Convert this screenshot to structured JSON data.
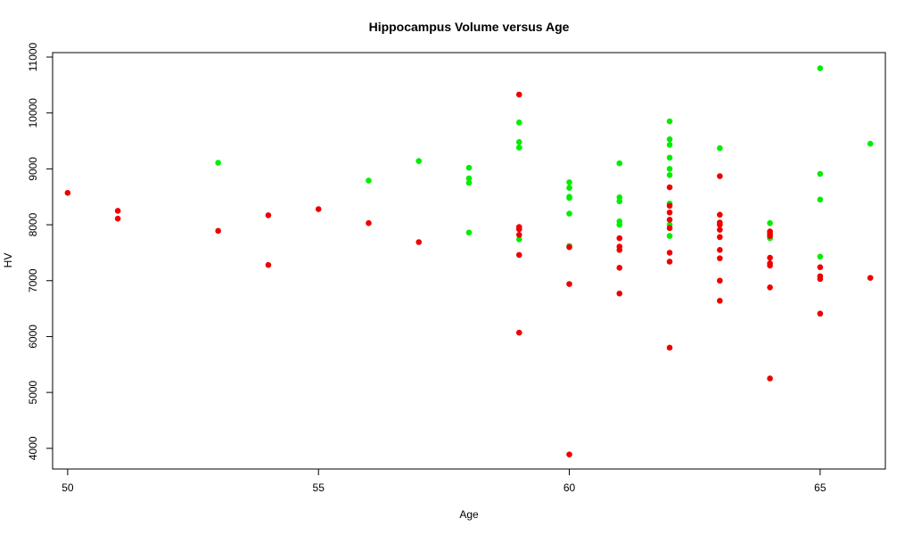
{
  "chart_data": {
    "type": "scatter",
    "title": "Hippocampus Volume versus Age",
    "xlabel": "Age",
    "ylabel": "HV",
    "xlim": [
      49.7,
      66.3
    ],
    "ylim": [
      3630,
      11080
    ],
    "xticks": [
      "50",
      "55",
      "60",
      "65"
    ],
    "yticks": [
      "4000",
      "5000",
      "6000",
      "7000",
      "8000",
      "9000",
      "10000",
      "11000"
    ],
    "grid": false,
    "series": [
      {
        "color": "#00ee00",
        "points": [
          [
            53,
            9110
          ],
          [
            56,
            8790
          ],
          [
            57,
            9140
          ],
          [
            58,
            9020
          ],
          [
            58,
            8830
          ],
          [
            58,
            8750
          ],
          [
            58,
            7860
          ],
          [
            59,
            9830
          ],
          [
            59,
            9480
          ],
          [
            59,
            9380
          ],
          [
            59,
            7740
          ],
          [
            60,
            8760
          ],
          [
            60,
            8660
          ],
          [
            60,
            8500
          ],
          [
            60,
            8480
          ],
          [
            60,
            8200
          ],
          [
            60,
            7620
          ],
          [
            61,
            9100
          ],
          [
            61,
            8490
          ],
          [
            61,
            8420
          ],
          [
            61,
            8060
          ],
          [
            61,
            8000
          ],
          [
            62,
            9850
          ],
          [
            62,
            9530
          ],
          [
            62,
            9430
          ],
          [
            62,
            9200
          ],
          [
            62,
            9000
          ],
          [
            62,
            8890
          ],
          [
            62,
            8380
          ],
          [
            62,
            8000
          ],
          [
            62,
            7800
          ],
          [
            63,
            9370
          ],
          [
            64,
            8030
          ],
          [
            64,
            7760
          ],
          [
            65,
            10800
          ],
          [
            65,
            8910
          ],
          [
            65,
            8450
          ],
          [
            65,
            7430
          ],
          [
            66,
            9450
          ]
        ]
      },
      {
        "color": "#ee0000",
        "points": [
          [
            50,
            8570
          ],
          [
            51,
            8250
          ],
          [
            51,
            8110
          ],
          [
            53,
            7890
          ],
          [
            54,
            8170
          ],
          [
            54,
            7280
          ],
          [
            55,
            8280
          ],
          [
            56,
            8030
          ],
          [
            57,
            7690
          ],
          [
            59,
            10330
          ],
          [
            59,
            7960
          ],
          [
            59,
            7920
          ],
          [
            59,
            7820
          ],
          [
            59,
            7460
          ],
          [
            59,
            6070
          ],
          [
            60,
            7600
          ],
          [
            60,
            6940
          ],
          [
            60,
            3890
          ],
          [
            61,
            7760
          ],
          [
            61,
            7610
          ],
          [
            61,
            7550
          ],
          [
            61,
            7230
          ],
          [
            61,
            6770
          ],
          [
            62,
            8670
          ],
          [
            62,
            8340
          ],
          [
            62,
            8220
          ],
          [
            62,
            8090
          ],
          [
            62,
            7940
          ],
          [
            62,
            7500
          ],
          [
            62,
            7340
          ],
          [
            62,
            5800
          ],
          [
            63,
            8870
          ],
          [
            63,
            8180
          ],
          [
            63,
            8040
          ],
          [
            63,
            8000
          ],
          [
            63,
            7910
          ],
          [
            63,
            7780
          ],
          [
            63,
            7550
          ],
          [
            63,
            7400
          ],
          [
            63,
            7000
          ],
          [
            63,
            6640
          ],
          [
            64,
            7880
          ],
          [
            64,
            7840
          ],
          [
            64,
            7800
          ],
          [
            64,
            7410
          ],
          [
            64,
            7310
          ],
          [
            64,
            7270
          ],
          [
            64,
            6880
          ],
          [
            64,
            5250
          ],
          [
            65,
            7240
          ],
          [
            65,
            7080
          ],
          [
            65,
            7030
          ],
          [
            65,
            6410
          ],
          [
            66,
            7050
          ]
        ]
      }
    ]
  }
}
